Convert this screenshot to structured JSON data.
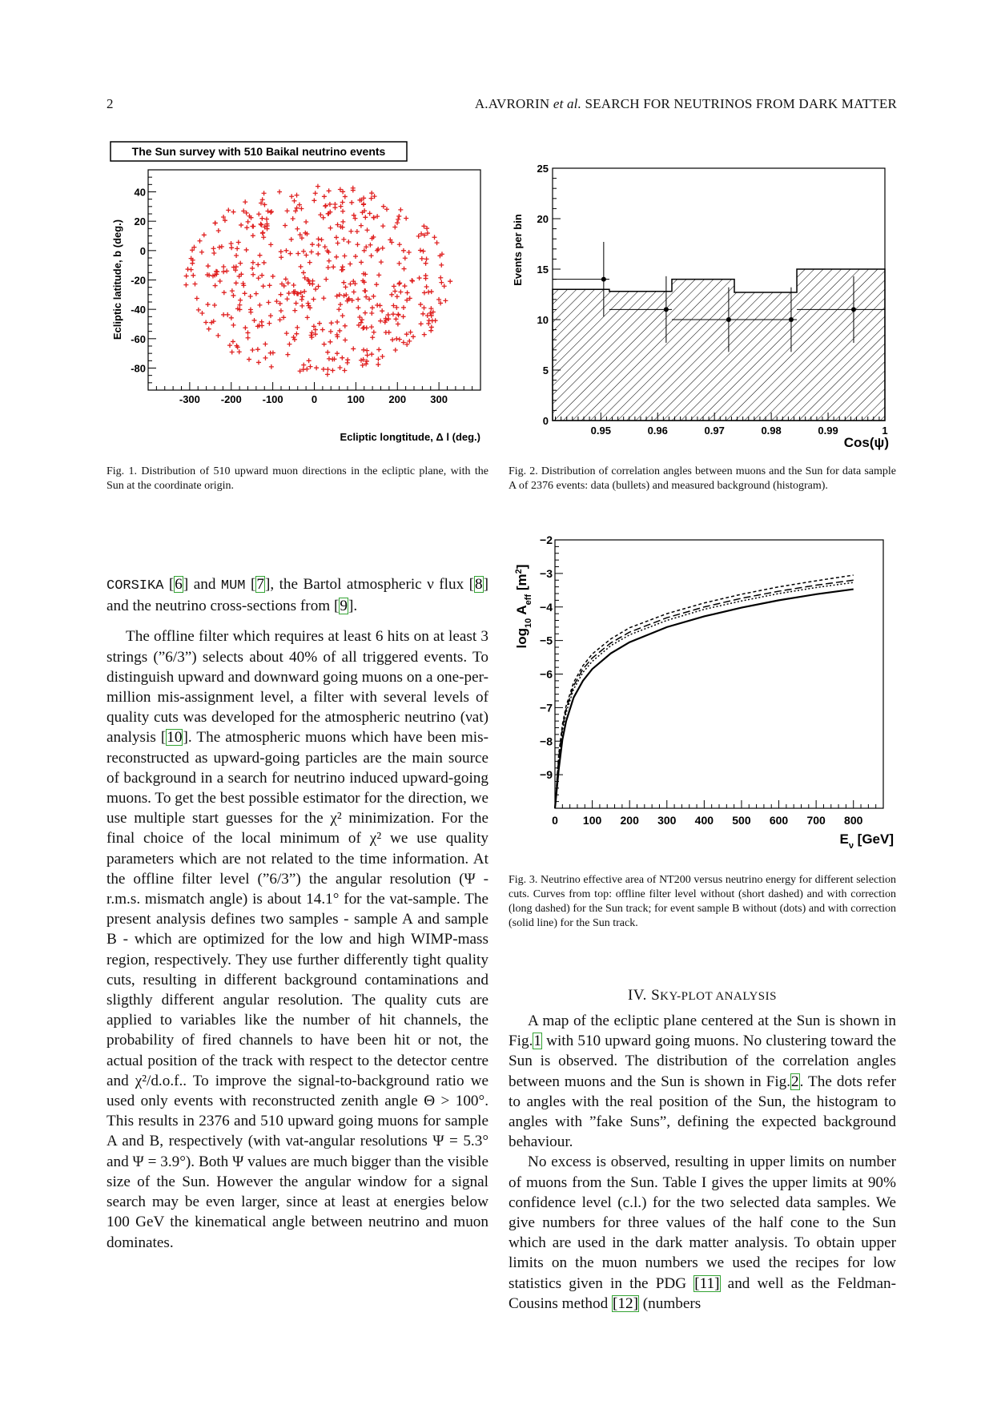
{
  "header": {
    "page_number": "2",
    "running_title": "A.AVRORIN et al. SEARCH FOR NEUTRINOS FROM DARK MATTER"
  },
  "figure1": {
    "caption": "Fig. 1.    Distribution of 510 upward muon directions in the ecliptic plane, with the Sun at the coordinate origin.",
    "chart_data": {
      "type": "scatter",
      "title": "The Sun survey with 510 Baikal neutrino events",
      "xlabel": "Ecliptic longtitude, Δ l (deg.)",
      "ylabel": "Ecliptic latitude, b (deg.)",
      "xlim": [
        -400,
        400
      ],
      "ylim": [
        -95,
        55
      ],
      "xticks": [
        "-300",
        "-200",
        "-100",
        "0",
        "100",
        "200",
        "300"
      ],
      "yticks": [
        "40",
        "20",
        "0",
        "-20",
        "-40",
        "-60",
        "-80"
      ],
      "marker_color": "#e02020",
      "n_points": 510,
      "points_description_note": "scattered points within an elliptical region approx -310 to 330 in l and -85 to 45 in b"
    }
  },
  "figure2": {
    "caption": "Fig. 2.    Distribution of correlation angles between muons and the Sun for data sample A of 2376 events: data (bullets) and measured background (histogram).",
    "chart_data": {
      "type": "bar",
      "xlabel": "Cos(ψ)",
      "ylabel": "Events per bin",
      "xlim": [
        0.9415,
        1.0
      ],
      "ylim": [
        0,
        25
      ],
      "xticks": [
        "0.95",
        "0.96",
        "0.97",
        "0.98",
        "0.99",
        "1"
      ],
      "yticks": [
        "0",
        "5",
        "10",
        "15",
        "20",
        "25"
      ],
      "histogram_bins": [
        {
          "x0": 0.9415,
          "x1": 0.9515,
          "value": 13.0
        },
        {
          "x0": 0.9515,
          "x1": 0.9625,
          "value": 12.8
        },
        {
          "x0": 0.9625,
          "x1": 0.9735,
          "value": 14.0
        },
        {
          "x0": 0.9735,
          "x1": 0.9845,
          "value": 12.7
        },
        {
          "x0": 0.9845,
          "x1": 1.0,
          "value": 15.0
        }
      ],
      "data_points": [
        {
          "x": 0.9505,
          "y": 14,
          "yerr": 3.7
        },
        {
          "x": 0.9615,
          "y": 11,
          "yerr": 3.3
        },
        {
          "x": 0.9725,
          "y": 10,
          "yerr": 3.2
        },
        {
          "x": 0.9835,
          "y": 10,
          "yerr": 3.2
        },
        {
          "x": 0.9945,
          "y": 11,
          "yerr": 3.3
        }
      ]
    }
  },
  "figure3": {
    "caption": "Fig. 3.    Neutrino effective area of NT200 versus neutrino energy for different selection cuts. Curves from top: offline filter level without (short dashed) and with correction (long dashed) for the Sun track; for event sample B without (dots) and with correction (solid line) for the Sun track.",
    "chart_data": {
      "type": "line",
      "xlabel": "E_ν [GeV]",
      "ylabel": "log10 A_eff [m²]",
      "xlim": [
        0,
        880
      ],
      "ylim": [
        -10,
        -2
      ],
      "xticks": [
        "0",
        "100",
        "200",
        "300",
        "400",
        "500",
        "600",
        "700",
        "800"
      ],
      "yticks": [
        "-2",
        "-3",
        "-4",
        "-5",
        "-6",
        "-7",
        "-8",
        "-9"
      ],
      "x": [
        10,
        20,
        30,
        50,
        75,
        100,
        150,
        200,
        300,
        400,
        500,
        600,
        700,
        800
      ],
      "series": [
        {
          "style": "short-dashed",
          "values": [
            -8.4,
            -7.5,
            -6.95,
            -6.25,
            -5.75,
            -5.4,
            -4.95,
            -4.62,
            -4.2,
            -3.88,
            -3.62,
            -3.4,
            -3.22,
            -3.05
          ]
        },
        {
          "style": "long-dashed",
          "values": [
            -8.5,
            -7.6,
            -7.05,
            -6.35,
            -5.85,
            -5.52,
            -5.07,
            -4.75,
            -4.32,
            -4.0,
            -3.74,
            -3.53,
            -3.35,
            -3.2
          ]
        },
        {
          "style": "dots",
          "values": [
            -8.6,
            -7.7,
            -7.15,
            -6.45,
            -5.95,
            -5.62,
            -5.15,
            -4.83,
            -4.4,
            -4.07,
            -3.82,
            -3.6,
            -3.42,
            -3.27
          ]
        },
        {
          "style": "solid",
          "values": [
            -8.85,
            -7.95,
            -7.4,
            -6.7,
            -6.2,
            -5.85,
            -5.38,
            -5.05,
            -4.6,
            -4.28,
            -4.02,
            -3.8,
            -3.62,
            -3.47
          ]
        }
      ]
    }
  },
  "left_column": {
    "p1_parts": [
      "CORSIKA",
      " [",
      "6",
      "] and ",
      "MUM",
      " [",
      "7",
      "], the Bartol atmospheric ν flux [",
      "8",
      "] and the neutrino cross-sections from [",
      "9",
      "]."
    ],
    "p2_a": "The offline filter which requires at least 6 hits on at least 3 strings (”6/3”) selects about 40% of all triggered events. To distinguish upward and downward going muons on a one-per-million mis-assignment level, a filter with several levels of quality cuts was developed for the atmospheric neutrino (νat) analysis ",
    "p2_ref": "10",
    "p2_b": ". The atmospheric muons which have been mis-reconstructed as upward-going particles are the main source of background in a search for neutrino induced upward-going muons. To get the best possible estimator for the direction, we use multiple start guesses for the χ² minimization. For the final choice of the local minimum of χ² we use quality parameters which are not related to the time information. At the offline filter level (”6/3”) the angular resolution (Ψ - r.m.s. mismatch angle) is about 14.1° for the νat-sample. The present analysis defines two samples - sample A and sample B - which are optimized for the low and high WIMP-mass region, respectively. They use further differently tight quality cuts, resulting in different background contaminations and sligthly different angular resolution. The quality cuts are applied to variables like the number of hit channels, the probability of fired channels to have been hit or not, the actual position of the track with respect to the detector centre and χ²/d.o.f.. To improve the signal-to-background ratio we used only events with reconstructed zenith angle Θ > 100°. This results in 2376 and 510 upward going muons for sample A and B, respectively (with νat-angular resolutions Ψ = 5.3° and Ψ = 3.9°). Both Ψ values are much bigger than the visible size of the Sun. However the angular window for a signal search may be even larger, since at least at energies below 100 GeV the kinematical angle between neutrino and muon dominates."
  },
  "section": {
    "numeral": "IV.",
    "title_first": "S",
    "title_rest": "KY-PLOT ANALYSIS"
  },
  "right_column": {
    "p1_a": "A map of the ecliptic plane centered at the Sun is shown in Fig.",
    "p1_ref1": "1",
    "p1_b": " with 510 upward going muons. No clustering toward the Sun is observed. The distribution of the correlation angles between muons and the Sun is shown in Fig.",
    "p1_ref2": "2",
    "p1_c": ". The dots refer to angles with the real position of the Sun, the histogram to angles with ”fake Suns”, defining the expected background behaviour.",
    "p2_a": "No excess is observed, resulting in upper limits on number of muons from the Sun. Table I gives the upper limits at 90% confidence level (c.l.) for the two selected data samples. We give numbers for three values of the half cone to the Sun which are used in the dark matter analysis. To obtain upper limits on the muon numbers we used the recipes for low statistics given in the PDG ",
    "p2_ref1": "[11]",
    "p2_b": " and well as the Feldman-Cousins method ",
    "p2_ref2": "[12]",
    "p2_c": " (numbers"
  }
}
